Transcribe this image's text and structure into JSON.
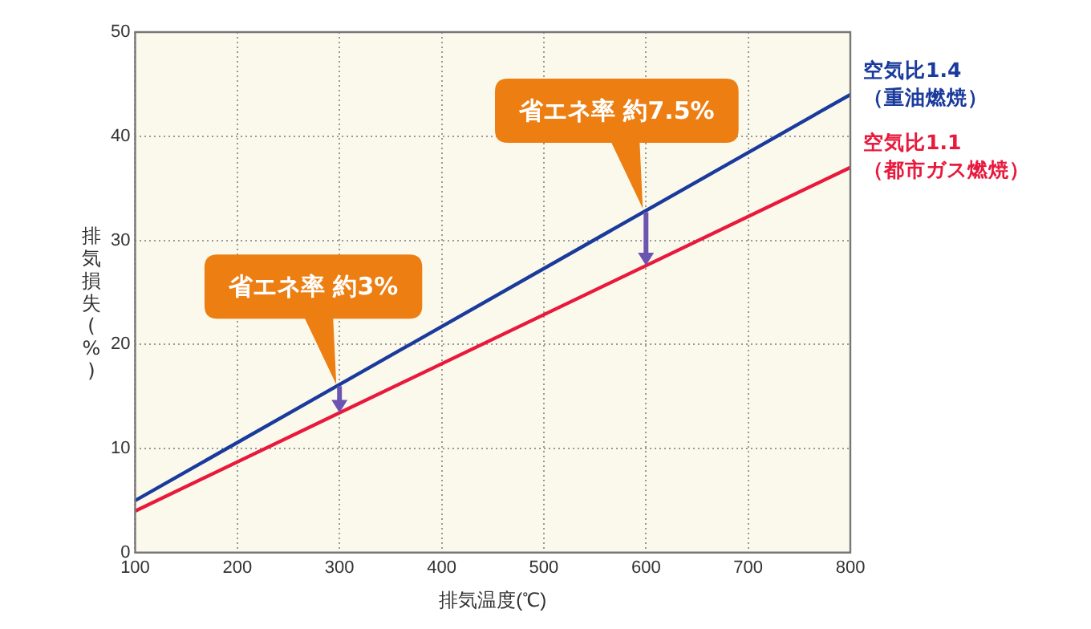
{
  "chart_data": {
    "type": "line",
    "xlabel": "排気温度(℃)",
    "ylabel": "排気損失(%)",
    "x": [
      100,
      800
    ],
    "series": [
      {
        "name": "空気比1.4 （重油燃焼）",
        "color": "#1a3a9c",
        "values": [
          5,
          44
        ]
      },
      {
        "name": "空気比1.1 （都市ガス燃焼）",
        "color": "#e8193c",
        "values": [
          4,
          37
        ]
      }
    ],
    "xlim": [
      100,
      800
    ],
    "xticks": [
      100,
      200,
      300,
      400,
      500,
      600,
      700,
      800
    ],
    "ylim": [
      0,
      50
    ],
    "yticks": [
      0,
      10,
      20,
      30,
      40,
      50
    ],
    "grid": true,
    "legend": false,
    "marker": "none",
    "line_style": "solid",
    "annotations": [
      {
        "text": "省エネ率 約3%",
        "x": 300,
        "y": 16
      },
      {
        "text": "省エネ率 約7.5%",
        "x": 600,
        "y": 32.9
      }
    ]
  }
}
